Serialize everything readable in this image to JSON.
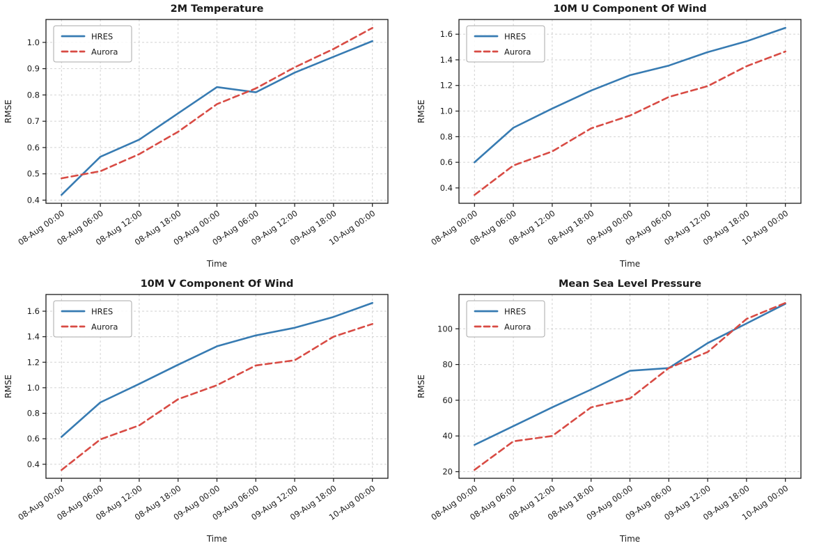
{
  "figure": {
    "background": "#ffffff"
  },
  "colors": {
    "hres": "#377bb2",
    "aurora": "#d84b44",
    "grid": "#d2d2d2",
    "spine": "#1a1a1a",
    "text": "#1a1a1a",
    "legend_border": "#aaaaaa",
    "legend_bg": "#ffffff"
  },
  "legend": {
    "items": [
      {
        "label": "HRES",
        "style": "solid",
        "color_key": "hres"
      },
      {
        "label": "Aurora",
        "style": "dashed",
        "color_key": "aurora"
      }
    ]
  },
  "chart_data": [
    {
      "type": "line",
      "title": "2M Temperature",
      "xlabel": "Time",
      "ylabel": "RMSE",
      "categories": [
        "08-Aug 00:00",
        "08-Aug 06:00",
        "08-Aug 12:00",
        "08-Aug 18:00",
        "09-Aug 00:00",
        "09-Aug 06:00",
        "09-Aug 12:00",
        "09-Aug 18:00",
        "10-Aug 00:00"
      ],
      "series": [
        {
          "name": "HRES",
          "style": "solid",
          "values": [
            0.42,
            0.565,
            0.63,
            0.73,
            0.83,
            0.81,
            0.885,
            0.945,
            1.005
          ]
        },
        {
          "name": "Aurora",
          "style": "dashed",
          "values": [
            0.483,
            0.51,
            0.575,
            0.66,
            0.765,
            0.825,
            0.905,
            0.975,
            1.055
          ]
        }
      ],
      "yticks": [
        0.4,
        0.5,
        0.6,
        0.7,
        0.8,
        0.9,
        1.0
      ],
      "ytick_decimals": 1,
      "ylim": [
        0.388,
        1.087
      ],
      "grid": true,
      "legend_position": "upper-left"
    },
    {
      "type": "line",
      "title": "10M U Component Of Wind",
      "xlabel": "Time",
      "ylabel": "RMSE",
      "categories": [
        "08-Aug 00:00",
        "08-Aug 06:00",
        "08-Aug 12:00",
        "08-Aug 18:00",
        "09-Aug 00:00",
        "09-Aug 06:00",
        "09-Aug 12:00",
        "09-Aug 18:00",
        "10-Aug 00:00"
      ],
      "series": [
        {
          "name": "HRES",
          "style": "solid",
          "values": [
            0.6,
            0.87,
            1.02,
            1.16,
            1.28,
            1.355,
            1.46,
            1.545,
            1.65
          ]
        },
        {
          "name": "Aurora",
          "style": "dashed",
          "values": [
            0.345,
            0.575,
            0.685,
            0.865,
            0.965,
            1.11,
            1.195,
            1.35,
            1.465
          ]
        }
      ],
      "yticks": [
        0.4,
        0.6,
        0.8,
        1.0,
        1.2,
        1.4,
        1.6
      ],
      "ytick_decimals": 1,
      "ylim": [
        0.28,
        1.715
      ],
      "grid": true,
      "legend_position": "upper-left"
    },
    {
      "type": "line",
      "title": "10M V Component Of Wind",
      "xlabel": "Time",
      "ylabel": "RMSE",
      "categories": [
        "08-Aug 00:00",
        "08-Aug 06:00",
        "08-Aug 12:00",
        "08-Aug 18:00",
        "09-Aug 00:00",
        "09-Aug 06:00",
        "09-Aug 12:00",
        "09-Aug 18:00",
        "10-Aug 00:00"
      ],
      "series": [
        {
          "name": "HRES",
          "style": "solid",
          "values": [
            0.615,
            0.885,
            1.03,
            1.18,
            1.325,
            1.41,
            1.47,
            1.555,
            1.665
          ]
        },
        {
          "name": "Aurora",
          "style": "dashed",
          "values": [
            0.355,
            0.595,
            0.705,
            0.91,
            1.02,
            1.175,
            1.215,
            1.4,
            1.5
          ]
        }
      ],
      "yticks": [
        0.4,
        0.6,
        0.8,
        1.0,
        1.2,
        1.4,
        1.6
      ],
      "ytick_decimals": 1,
      "ylim": [
        0.29,
        1.731
      ],
      "grid": true,
      "legend_position": "upper-left"
    },
    {
      "type": "line",
      "title": "Mean Sea Level Pressure",
      "xlabel": "Time",
      "ylabel": "RMSE",
      "categories": [
        "08-Aug 00:00",
        "08-Aug 06:00",
        "08-Aug 12:00",
        "08-Aug 18:00",
        "09-Aug 00:00",
        "09-Aug 06:00",
        "09-Aug 12:00",
        "09-Aug 18:00",
        "10-Aug 00:00"
      ],
      "series": [
        {
          "name": "HRES",
          "style": "solid",
          "values": [
            35,
            45.5,
            56,
            66,
            76.5,
            78,
            92,
            103,
            114
          ]
        },
        {
          "name": "Aurora",
          "style": "dashed",
          "values": [
            21,
            37,
            40,
            56,
            61,
            78,
            87,
            105.5,
            114.5
          ]
        }
      ],
      "yticks": [
        20,
        40,
        60,
        80,
        100
      ],
      "ytick_decimals": 0,
      "ylim": [
        16.3,
        119.2
      ],
      "grid": true,
      "legend_position": "upper-left"
    }
  ]
}
